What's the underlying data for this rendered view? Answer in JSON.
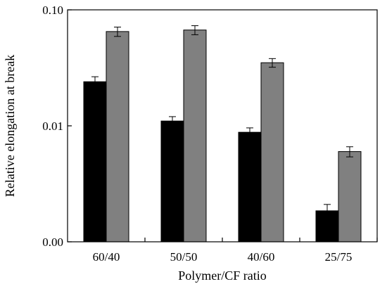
{
  "chart_data": {
    "type": "bar",
    "title": "",
    "xlabel": "Polymer/CF ratio",
    "ylabel": "Relative elongation at break",
    "categories": [
      "60/40",
      "50/50",
      "40/60",
      "25/75"
    ],
    "y_scale": "log",
    "ylim": [
      0.001,
      0.1
    ],
    "y_ticks": [
      0.001,
      0.01,
      0.1
    ],
    "y_tick_labels": [
      "0.00",
      "0.01",
      "0.10"
    ],
    "grid": false,
    "legend": "none",
    "series": [
      {
        "color": "#000000",
        "values": [
          0.024,
          0.011,
          0.0088,
          0.00185
        ],
        "errors": [
          0.0025,
          0.001,
          0.0008,
          0.00025
        ]
      },
      {
        "color": "#808080",
        "values": [
          0.065,
          0.067,
          0.035,
          0.006
        ],
        "errors": [
          0.006,
          0.006,
          0.003,
          0.0006
        ]
      }
    ]
  }
}
